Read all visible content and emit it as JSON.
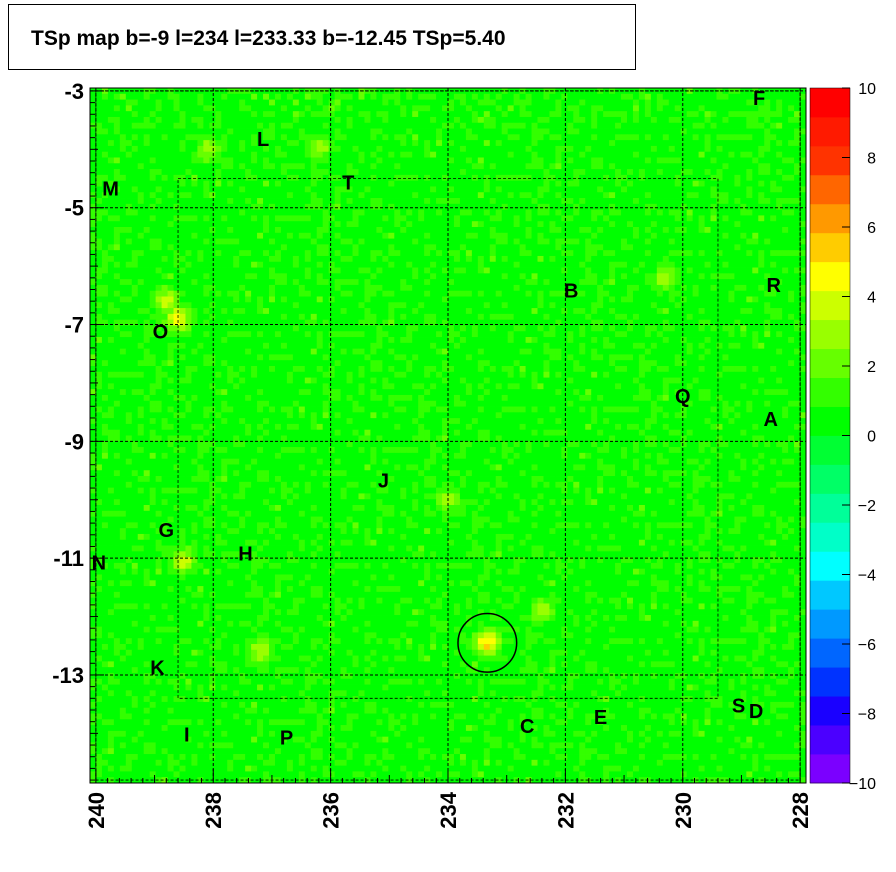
{
  "title": "TSp map b=-9 l=234 l=233.33 b=-12.45 TSp=5.40",
  "chart_data": {
    "type": "heatmap",
    "title": "TSp map b=-9 l=234 l=233.33 b=-12.45 TSp=5.40",
    "xlabel": "",
    "ylabel": "",
    "xlim": [
      240.1,
      227.9
    ],
    "ylim": [
      -14.85,
      -2.95
    ],
    "x_ticks": [
      "240",
      "238",
      "236",
      "234",
      "232",
      "230",
      "228"
    ],
    "y_ticks": [
      "-3",
      "-5",
      "-7",
      "-9",
      "-11",
      "-13"
    ],
    "z_range": [
      -10,
      10
    ],
    "z_ticks": [
      "10",
      "8",
      "6",
      "4",
      "2",
      "0",
      "−2",
      "−4",
      "−6",
      "−8",
      "−10"
    ],
    "palette": [
      "#7b00ff",
      "#4b00ff",
      "#1a00ff",
      "#0033ff",
      "#0066ff",
      "#0099ff",
      "#00c8ff",
      "#00ffff",
      "#00ffc8",
      "#00ff99",
      "#00ff66",
      "#00ff33",
      "#00ff00",
      "#33ff00",
      "#66ff00",
      "#99ff00",
      "#ccff00",
      "#ffff00",
      "#ffcc00",
      "#ff9900",
      "#ff6600",
      "#ff3300",
      "#ff1a00",
      "#ff0000"
    ],
    "grid": true,
    "typical_value_range": [
      -1,
      2
    ],
    "hotspots": [
      {
        "l": 233.33,
        "b": -12.45,
        "value": 5.4
      },
      {
        "l": 238.8,
        "b": -6.6,
        "value": 4
      },
      {
        "l": 238.6,
        "b": -6.9,
        "value": 4.5
      },
      {
        "l": 238.5,
        "b": -11.05,
        "value": 4
      },
      {
        "l": 237.2,
        "b": -12.6,
        "value": 3.5
      },
      {
        "l": 232.4,
        "b": -11.9,
        "value": 3
      },
      {
        "l": 236.2,
        "b": -4.0,
        "value": 3
      },
      {
        "l": 234.0,
        "b": -10.0,
        "value": 3
      },
      {
        "l": 230.3,
        "b": -6.2,
        "value": 3
      },
      {
        "l": 238.1,
        "b": -4.0,
        "value": 3
      }
    ],
    "circle": {
      "l": 233.33,
      "b": -12.45,
      "radius_deg": 0.5
    },
    "sources": [
      {
        "label": "F",
        "l": 228.7,
        "b": -3.15
      },
      {
        "label": "L",
        "l": 237.15,
        "b": -3.85
      },
      {
        "label": "M",
        "l": 239.75,
        "b": -4.7
      },
      {
        "label": "T",
        "l": 235.7,
        "b": -4.6
      },
      {
        "label": "B",
        "l": 231.9,
        "b": -6.45
      },
      {
        "label": "R",
        "l": 228.45,
        "b": -6.35
      },
      {
        "label": "O",
        "l": 238.9,
        "b": -7.15
      },
      {
        "label": "Q",
        "l": 230.0,
        "b": -8.25
      },
      {
        "label": "A",
        "l": 228.5,
        "b": -8.65
      },
      {
        "label": "J",
        "l": 235.1,
        "b": -9.7
      },
      {
        "label": "G",
        "l": 238.8,
        "b": -10.55
      },
      {
        "label": "H",
        "l": 237.45,
        "b": -10.95
      },
      {
        "label": "N",
        "l": 239.95,
        "b": -11.1
      },
      {
        "label": "K",
        "l": 238.95,
        "b": -12.9
      },
      {
        "label": "S",
        "l": 229.05,
        "b": -13.55
      },
      {
        "label": "D",
        "l": 228.75,
        "b": -13.65
      },
      {
        "label": "E",
        "l": 231.4,
        "b": -13.75
      },
      {
        "label": "C",
        "l": 232.65,
        "b": -13.9
      },
      {
        "label": "I",
        "l": 238.45,
        "b": -14.05
      },
      {
        "label": "P",
        "l": 236.75,
        "b": -14.1
      }
    ]
  }
}
